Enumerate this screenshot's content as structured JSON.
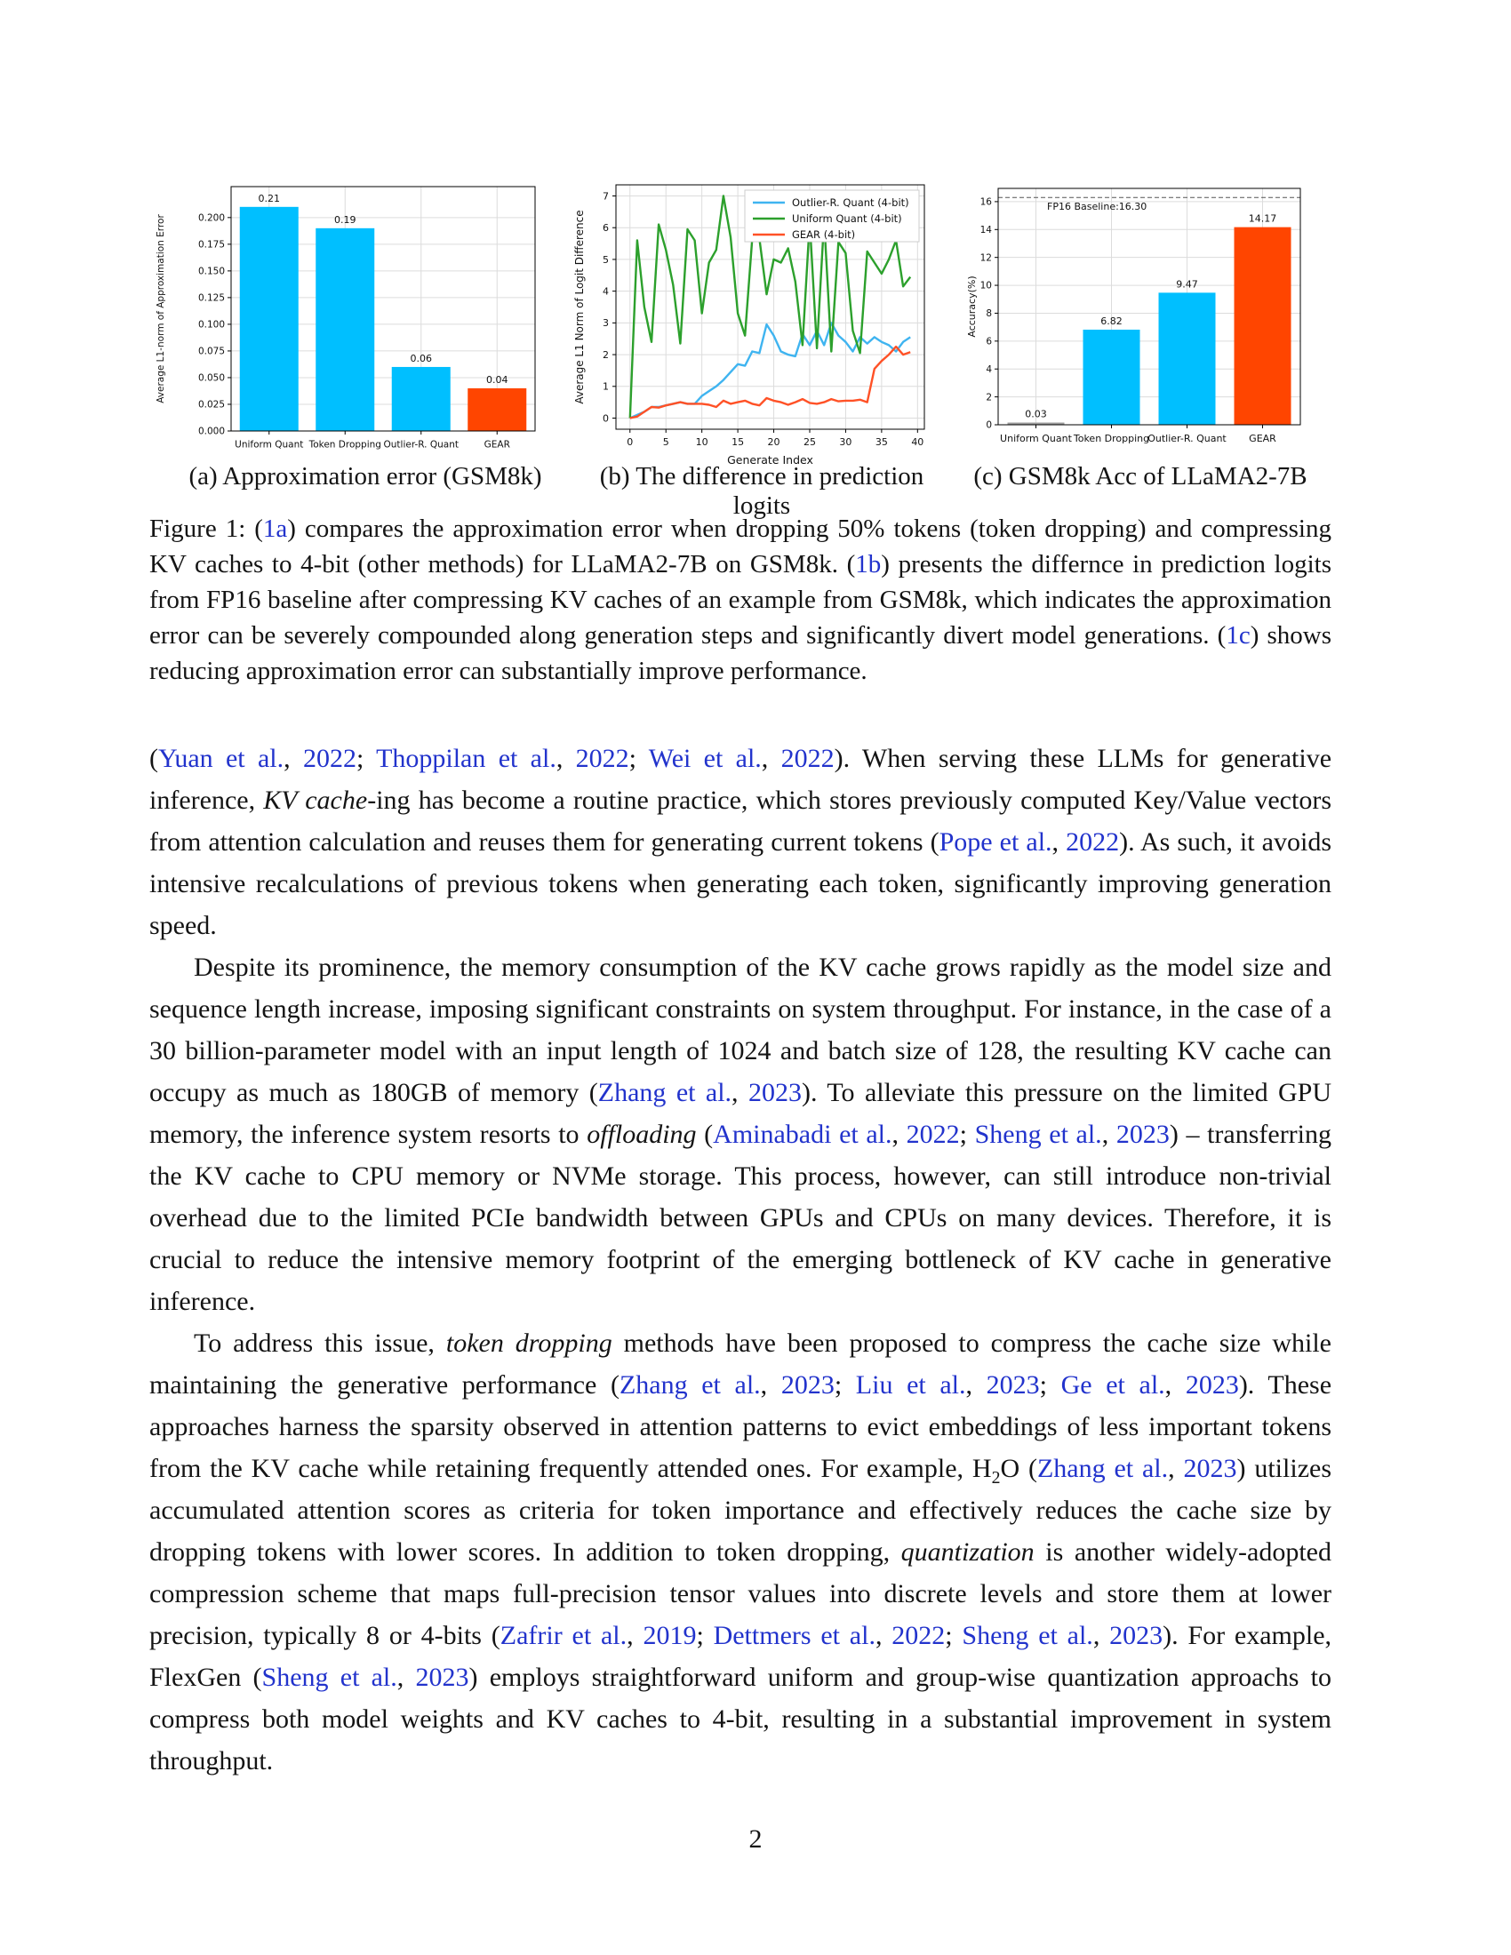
{
  "page": {
    "number": "2"
  },
  "colors": {
    "bar_cyan": "#00BFFF",
    "bar_orange": "#FF4500",
    "bar_gray": "#9e9e9e",
    "line_blue": "#3fb4f0",
    "line_green": "#2ca02c",
    "line_orange": "#ff5126",
    "cite_blue": "#2233cc",
    "grid_gray": "#dcdcdc"
  },
  "chart_data": [
    {
      "type": "bar",
      "title": "",
      "xlabel": "",
      "ylabel": "Average L1-norm of Approximation Error",
      "categories": [
        "Uniform Quant",
        "Token Dropping",
        "Outlier-R. Quant",
        "GEAR"
      ],
      "values": [
        0.21,
        0.19,
        0.06,
        0.04
      ],
      "bar_labels": [
        "0.21",
        "0.19",
        "0.06",
        "0.04"
      ],
      "bar_colors": [
        "#00BFFF",
        "#00BFFF",
        "#00BFFF",
        "#FF4500"
      ],
      "ylim": [
        0,
        0.229
      ],
      "yticks": [
        0.0,
        0.025,
        0.05,
        0.075,
        0.1,
        0.125,
        0.15,
        0.175,
        0.2
      ],
      "ytick_labels": [
        "0.000",
        "0.025",
        "0.050",
        "0.075",
        "0.100",
        "0.125",
        "0.150",
        "0.175",
        "0.200"
      ],
      "grid": true
    },
    {
      "type": "line",
      "title": "",
      "xlabel": "Generate Index",
      "ylabel": "Average L1 Norm of Logit Difference",
      "xlim": [
        -1.95,
        40.95
      ],
      "ylim": [
        -0.35,
        7.35
      ],
      "xticks": [
        0,
        5,
        10,
        15,
        20,
        25,
        30,
        35,
        40
      ],
      "yticks": [
        0,
        1,
        2,
        3,
        4,
        5,
        6,
        7
      ],
      "grid": true,
      "legend_position": "upper right",
      "series": [
        {
          "name": "Outlier-R. Quant (4-bit)",
          "color": "#3fb4f0",
          "values": [
            0.0,
            0.1,
            0.2,
            0.35,
            0.35,
            0.4,
            0.45,
            0.5,
            0.45,
            0.45,
            0.7,
            0.85,
            1.0,
            1.2,
            1.45,
            1.7,
            1.65,
            2.1,
            2.05,
            2.95,
            2.6,
            2.1,
            2.0,
            1.95,
            2.65,
            2.3,
            2.75,
            2.3,
            3.0,
            2.6,
            2.4,
            2.1,
            2.55,
            2.35,
            2.55,
            2.4,
            2.3,
            2.1,
            2.4,
            2.55
          ]
        },
        {
          "name": "Uniform Quant (4-bit)",
          "color": "#2ca02c",
          "values": [
            0.0,
            5.6,
            3.5,
            2.4,
            6.1,
            5.3,
            4.2,
            2.35,
            5.95,
            5.6,
            3.3,
            4.9,
            5.3,
            7.0,
            5.7,
            3.3,
            2.6,
            5.65,
            5.65,
            3.9,
            5.0,
            4.9,
            5.35,
            4.3,
            2.3,
            6.2,
            2.2,
            6.25,
            2.1,
            5.55,
            5.2,
            2.75,
            2.05,
            5.25,
            4.9,
            4.55,
            5.0,
            5.6,
            4.15,
            4.45
          ]
        },
        {
          "name": "GEAR (4-bit)",
          "color": "#ff5126",
          "values": [
            0.0,
            0.05,
            0.2,
            0.35,
            0.33,
            0.4,
            0.45,
            0.5,
            0.45,
            0.45,
            0.45,
            0.42,
            0.35,
            0.55,
            0.45,
            0.5,
            0.55,
            0.45,
            0.4,
            0.63,
            0.55,
            0.5,
            0.42,
            0.5,
            0.6,
            0.48,
            0.45,
            0.5,
            0.6,
            0.53,
            0.55,
            0.55,
            0.58,
            0.5,
            1.55,
            1.8,
            2.0,
            2.25,
            2.0,
            2.08
          ]
        }
      ]
    },
    {
      "type": "bar",
      "title": "",
      "xlabel": "",
      "ylabel": "Accuracy(%)",
      "categories": [
        "Uniform Quant",
        "Token Dropping",
        "Outlier-R. Quant",
        "GEAR"
      ],
      "values": [
        0.03,
        6.82,
        9.47,
        14.17
      ],
      "bar_labels": [
        "0.03",
        "6.82",
        "9.47",
        "14.17"
      ],
      "bar_colors": [
        "#9e9e9e",
        "#00BFFF",
        "#00BFFF",
        "#FF4500"
      ],
      "ylim": [
        0,
        16.95
      ],
      "yticks": [
        0,
        2,
        4,
        6,
        8,
        10,
        12,
        14,
        16
      ],
      "ytick_labels": [
        "0",
        "2",
        "4",
        "6",
        "8",
        "10",
        "12",
        "14",
        "16"
      ],
      "baseline": {
        "value": 16.3,
        "label": "FP16 Baseline:16.30"
      },
      "grid": true
    }
  ],
  "figure": {
    "subcaptions": [
      {
        "label": "(a) Approximation error (GSM8k)"
      },
      {
        "label": "(b) The difference in prediction logits"
      },
      {
        "label": "(c) GSM8k Acc of LLaMA2-7B"
      }
    ],
    "caption": [
      {
        "t": "Figure 1:  ("
      },
      {
        "t": "1a",
        "s": "c"
      },
      {
        "t": ") compares the approximation error when dropping 50% tokens (token dropping) and compressing KV caches to 4-bit (other methods) for LLaMA2-7B on GSM8k. ("
      },
      {
        "t": "1b",
        "s": "c"
      },
      {
        "t": ") presents the differnce in prediction logits from FP16 baseline after compressing KV caches of an example from GSM8k, which indicates the approximation error can be severely compounded along generation steps and significantly divert model generations. ("
      },
      {
        "t": "1c",
        "s": "c"
      },
      {
        "t": ") shows reducing approximation error can substantially improve performance."
      }
    ]
  },
  "paragraphs": [
    {
      "indent": false,
      "segments": [
        {
          "t": "("
        },
        {
          "t": "Yuan et al.",
          "s": "c"
        },
        {
          "t": ", "
        },
        {
          "t": "2022",
          "s": "c"
        },
        {
          "t": "; "
        },
        {
          "t": "Thoppilan et al.",
          "s": "c"
        },
        {
          "t": ", "
        },
        {
          "t": "2022",
          "s": "c"
        },
        {
          "t": "; "
        },
        {
          "t": "Wei et al.",
          "s": "c"
        },
        {
          "t": ", "
        },
        {
          "t": "2022",
          "s": "c"
        },
        {
          "t": "). When serving these LLMs for generative inference, "
        },
        {
          "t": "KV cache",
          "s": "i"
        },
        {
          "t": "-ing has become a routine practice, which stores previously computed Key/Value vectors from attention calculation and reuses them for generating current tokens ("
        },
        {
          "t": "Pope et al.",
          "s": "c"
        },
        {
          "t": ", "
        },
        {
          "t": "2022",
          "s": "c"
        },
        {
          "t": "). As such, it avoids intensive recalculations of previous tokens when generating each token, significantly improving generation speed."
        }
      ]
    },
    {
      "indent": true,
      "segments": [
        {
          "t": "Despite its prominence, the memory consumption of the KV cache grows rapidly as the model size and sequence length increase, imposing significant constraints on system throughput. For instance, in the case of a 30 billion-parameter model with an input length of 1024 and batch size of 128, the resulting KV cache can occupy as much as 180GB of memory ("
        },
        {
          "t": "Zhang et al.",
          "s": "c"
        },
        {
          "t": ", "
        },
        {
          "t": "2023",
          "s": "c"
        },
        {
          "t": "). To alleviate this pressure on the limited GPU memory, the inference system resorts to "
        },
        {
          "t": "offloading",
          "s": "i"
        },
        {
          "t": " ("
        },
        {
          "t": "Aminabadi et al.",
          "s": "c"
        },
        {
          "t": ", "
        },
        {
          "t": "2022",
          "s": "c"
        },
        {
          "t": "; "
        },
        {
          "t": "Sheng et al.",
          "s": "c"
        },
        {
          "t": ", "
        },
        {
          "t": "2023",
          "s": "c"
        },
        {
          "t": ") – transferring the KV cache to CPU memory or NVMe storage. This process, however, can still introduce non-trivial overhead due to the limited PCIe bandwidth between GPUs and CPUs on many devices.  Therefore, it is crucial to reduce the intensive memory footprint of the emerging bottleneck of KV cache in generative inference."
        }
      ]
    },
    {
      "indent": true,
      "segments": [
        {
          "t": "To address this issue, "
        },
        {
          "t": "token dropping",
          "s": "i"
        },
        {
          "t": " methods have been proposed to compress the cache size while maintaining the generative performance ("
        },
        {
          "t": "Zhang et al.",
          "s": "c"
        },
        {
          "t": ", "
        },
        {
          "t": "2023",
          "s": "c"
        },
        {
          "t": "; "
        },
        {
          "t": "Liu et al.",
          "s": "c"
        },
        {
          "t": ", "
        },
        {
          "t": "2023",
          "s": "c"
        },
        {
          "t": "; "
        },
        {
          "t": "Ge et al.",
          "s": "c"
        },
        {
          "t": ", "
        },
        {
          "t": "2023",
          "s": "c"
        },
        {
          "t": "). These approaches harness the sparsity observed in attention patterns to evict embeddings of less important tokens from the KV cache while retaining frequently attended ones. For example, H"
        },
        {
          "t": "2",
          "s": "sub"
        },
        {
          "t": "O ("
        },
        {
          "t": "Zhang et al.",
          "s": "c"
        },
        {
          "t": ", "
        },
        {
          "t": "2023",
          "s": "c"
        },
        {
          "t": ") utilizes accumulated attention scores as criteria for token importance and effectively reduces the cache size by dropping tokens with lower scores.  In addition to token dropping, "
        },
        {
          "t": "quantization",
          "s": "i"
        },
        {
          "t": " is another widely-adopted compression scheme that maps full-precision tensor values into discrete levels and store them at lower precision, typically 8 or 4-bits ("
        },
        {
          "t": "Zafrir et al.",
          "s": "c"
        },
        {
          "t": ", "
        },
        {
          "t": "2019",
          "s": "c"
        },
        {
          "t": "; "
        },
        {
          "t": "Dettmers et al.",
          "s": "c"
        },
        {
          "t": ", "
        },
        {
          "t": "2022",
          "s": "c"
        },
        {
          "t": "; "
        },
        {
          "t": "Sheng et al.",
          "s": "c"
        },
        {
          "t": ", "
        },
        {
          "t": "2023",
          "s": "c"
        },
        {
          "t": "). For example, FlexGen ("
        },
        {
          "t": "Sheng et al.",
          "s": "c"
        },
        {
          "t": ", "
        },
        {
          "t": "2023",
          "s": "c"
        },
        {
          "t": ") employs straightforward uniform and group-wise quantization approachs to compress both model weights and KV caches to 4-bit, resulting in a substantial improvement in system throughput."
        }
      ]
    }
  ]
}
